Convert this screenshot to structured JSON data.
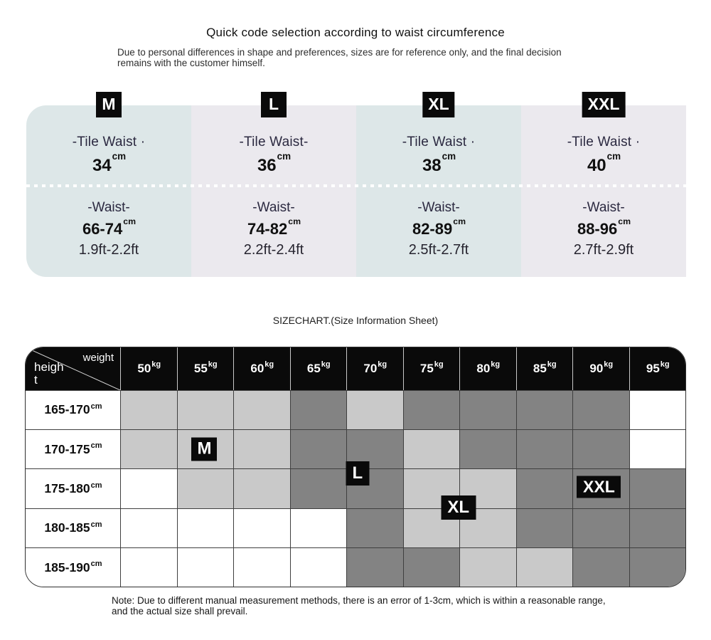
{
  "header": {
    "title": "Quick code selection according to waist circumference",
    "subtitle": "Due to personal differences in shape and preferences, sizes are for reference only, and the final decision remains with the customer himself."
  },
  "units": {
    "cm": "cm",
    "kg": "kg"
  },
  "size_cards": [
    {
      "size": "M",
      "tile_waist_label": "-Tile Waist ·",
      "tile_waist_value": "34",
      "waist_label": "-Waist-",
      "waist_cm": "66-74",
      "waist_ft": "1.9ft-2.2ft"
    },
    {
      "size": "L",
      "tile_waist_label": "-Tile Waist-",
      "tile_waist_value": "36",
      "waist_label": "-Waist-",
      "waist_cm": "74-82",
      "waist_ft": "2.2ft-2.4ft"
    },
    {
      "size": "XL",
      "tile_waist_label": "-Tile Waist ·",
      "tile_waist_value": "38",
      "waist_label": "-Waist-",
      "waist_cm": "82-89",
      "waist_ft": "2.5ft-2.7ft"
    },
    {
      "size": "XXL",
      "tile_waist_label": "-Tile Waist ·",
      "tile_waist_value": "40",
      "waist_label": "-Waist-",
      "waist_cm": "88-96",
      "waist_ft": "2.7ft-2.9ft"
    }
  ],
  "sizechart": {
    "title": "SIZECHART.(Size Information Sheet)",
    "corner": {
      "col_label": "weight",
      "row_label": "height"
    },
    "weights": [
      "50",
      "55",
      "60",
      "65",
      "70",
      "75",
      "80",
      "85",
      "90",
      "95"
    ],
    "rows": [
      {
        "label": "165-170",
        "cells": [
          "light",
          "light",
          "light",
          "dark",
          "light",
          "dark",
          "dark",
          "dark",
          "dark",
          "white"
        ]
      },
      {
        "label": "170-175",
        "cells": [
          "light",
          "light",
          "light",
          "dark",
          "dark",
          "light",
          "dark",
          "dark",
          "dark",
          "white"
        ]
      },
      {
        "label": "175-180",
        "cells": [
          "white",
          "light",
          "light",
          "dark",
          "dark",
          "light",
          "light",
          "dark",
          "dark",
          "dark"
        ]
      },
      {
        "label": "180-185",
        "cells": [
          "white",
          "white",
          "white",
          "white",
          "dark",
          "light",
          "light",
          "dark",
          "dark",
          "dark"
        ]
      },
      {
        "label": "185-190",
        "cells": [
          "white",
          "white",
          "white",
          "white",
          "dark",
          "dark",
          "light",
          "light",
          "dark",
          "dark"
        ]
      }
    ],
    "badges": [
      {
        "label": "M"
      },
      {
        "label": "L"
      },
      {
        "label": "XL"
      },
      {
        "label": "XXL"
      }
    ]
  },
  "note": "Note: Due to different manual measurement methods, there is an error of 1-3cm, which is within a reasonable range, and the actual size shall prevail.",
  "colors": {
    "card_teal": "#dde7e8",
    "card_lavender": "#ebe9ee",
    "badge_bg": "#0a0a0a",
    "cell_white": "#ffffff",
    "cell_light": "#c9c9c9",
    "cell_dark": "#838383"
  }
}
